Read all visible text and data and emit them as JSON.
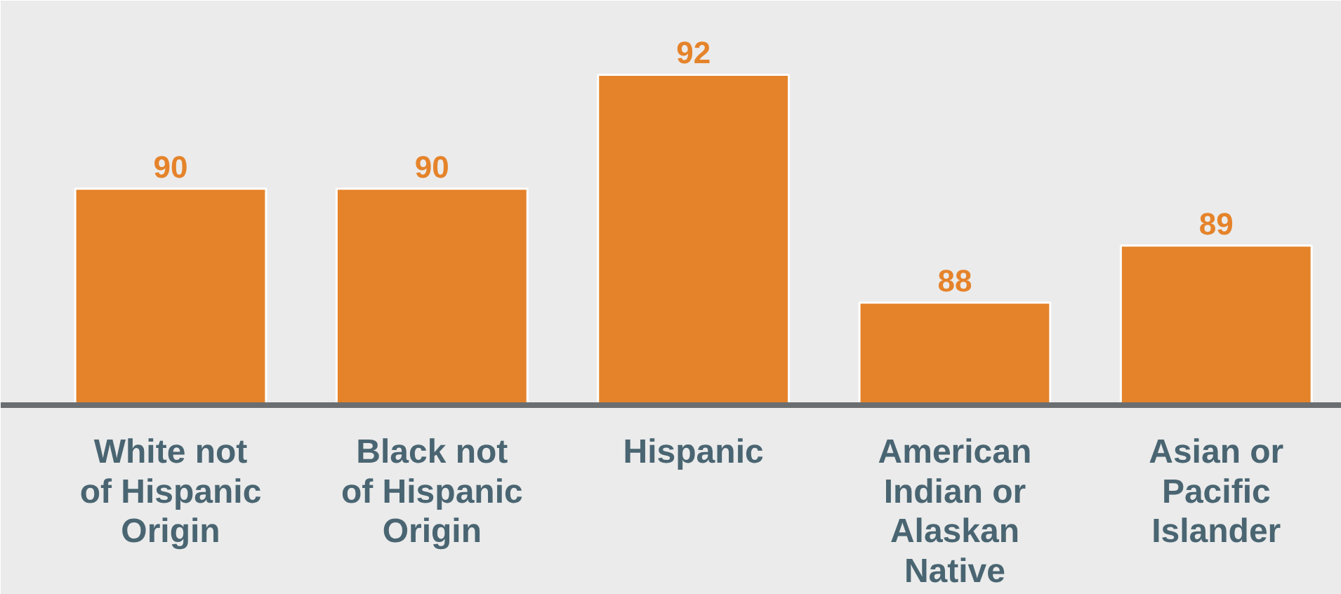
{
  "chart_data": {
    "type": "bar",
    "categories": [
      "White not\nof Hispanic\nOrigin",
      "Black not\nof Hispanic\nOrigin",
      "Hispanic",
      "American\nIndian or\nAlaskan\nNative",
      "Asian or\nPacific\nIslander"
    ],
    "values": [
      90,
      90,
      92,
      88,
      89
    ],
    "color": "#e5832a",
    "ylim": [
      86.2,
      93.3
    ],
    "data_labels": true,
    "grid": false
  }
}
